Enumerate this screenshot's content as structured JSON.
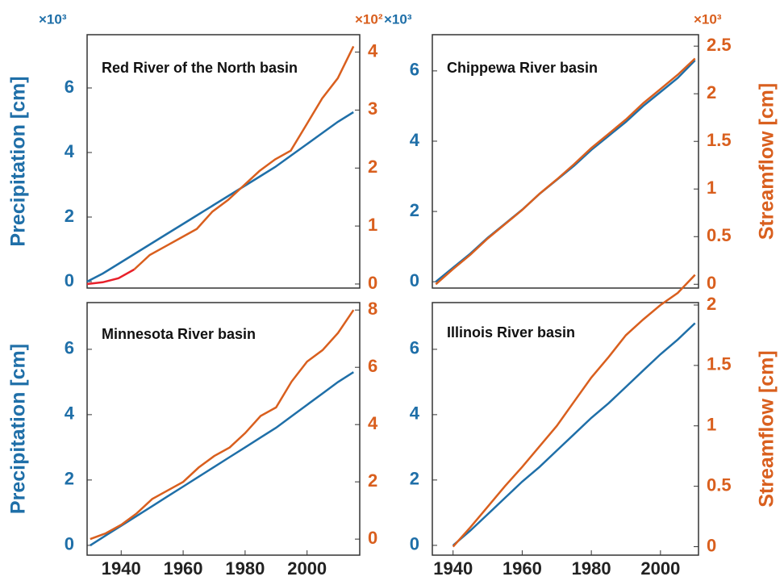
{
  "chart_data": [
    {
      "type": "line",
      "title": "Red River of the North basin",
      "ylabel": "Precipitation [cm]",
      "y_multiplier": "×10³",
      "y2_multiplier": "×10²",
      "x": [
        1930,
        1935,
        1940,
        1945,
        1950,
        1955,
        1960,
        1965,
        1970,
        1975,
        1980,
        1985,
        1990,
        1995,
        2000,
        2005,
        2010,
        2015
      ],
      "xlim": [
        1930,
        2017
      ],
      "ylim": [
        -0.2,
        7.65
      ],
      "yticks": [
        0,
        2,
        4,
        6
      ],
      "y2lim": [
        -0.07,
        4.3
      ],
      "y2ticks": [
        0,
        1,
        2,
        3,
        4
      ],
      "series": [
        {
          "color": "#1f6fa8",
          "values": [
            0,
            0.25,
            0.55,
            0.85,
            1.15,
            1.45,
            1.75,
            2.05,
            2.35,
            2.65,
            2.95,
            3.25,
            3.55,
            3.9,
            4.25,
            4.6,
            4.95,
            5.25
          ]
        },
        {
          "color": "#d95f1e",
          "axis": "y2",
          "values": [
            null,
            null,
            null,
            0.25,
            0.5,
            0.65,
            0.8,
            0.95,
            1.25,
            1.45,
            1.7,
            1.95,
            2.15,
            2.3,
            2.75,
            3.2,
            3.55,
            4.1
          ]
        },
        {
          "color": "#e8202a",
          "axis": "y2",
          "values": [
            0,
            0.03,
            0.1,
            0.25,
            null,
            null,
            null,
            null,
            null,
            null,
            null,
            null,
            null,
            null,
            null,
            null,
            null,
            null
          ]
        }
      ]
    },
    {
      "type": "line",
      "title": "Chippewa River basin",
      "y2label": "Streamflow [cm]",
      "y_multiplier": "×10³",
      "y2_multiplier": "×10³",
      "x": [
        1935,
        1940,
        1945,
        1950,
        1955,
        1960,
        1965,
        1970,
        1975,
        1980,
        1985,
        1990,
        1995,
        2000,
        2005,
        2010
      ],
      "xlim": [
        1934,
        2011
      ],
      "ylim": [
        -0.18,
        7.03
      ],
      "yticks": [
        0,
        2,
        4,
        6
      ],
      "y2lim": [
        -0.04,
        2.62
      ],
      "y2ticks": [
        0,
        0.5,
        1,
        1.5,
        2,
        2.5
      ],
      "series": [
        {
          "color": "#1f6fa8",
          "values": [
            0,
            0.4,
            0.8,
            1.25,
            1.65,
            2.05,
            2.5,
            2.9,
            3.3,
            3.75,
            4.15,
            4.55,
            5.0,
            5.4,
            5.8,
            6.3
          ]
        },
        {
          "color": "#d95f1e",
          "axis": "y2",
          "values": [
            0,
            0.16,
            0.31,
            0.48,
            0.63,
            0.78,
            0.95,
            1.1,
            1.26,
            1.43,
            1.58,
            1.73,
            1.9,
            2.05,
            2.2,
            2.37
          ]
        }
      ]
    },
    {
      "type": "line",
      "title": "Minnesota River basin",
      "ylabel": "Precipitation [cm]",
      "x": [
        1930,
        1935,
        1940,
        1945,
        1950,
        1955,
        1960,
        1965,
        1970,
        1975,
        1980,
        1985,
        1990,
        1995,
        2000,
        2005,
        2010,
        2015
      ],
      "xlim": [
        1929,
        2017
      ],
      "xticks": [
        1940,
        1960,
        1980,
        2000
      ],
      "ylim": [
        -0.3,
        7.43
      ],
      "yticks": [
        0,
        2,
        4,
        6
      ],
      "y2lim": [
        -0.56,
        8.26
      ],
      "y2ticks": [
        0,
        2,
        4,
        6,
        8
      ],
      "series": [
        {
          "color": "#1f6fa8",
          "values": [
            0,
            0.3,
            0.6,
            0.9,
            1.2,
            1.5,
            1.8,
            2.1,
            2.4,
            2.7,
            3.0,
            3.3,
            3.6,
            3.95,
            4.3,
            4.65,
            5.0,
            5.3
          ]
        },
        {
          "color": "#d95f1e",
          "axis": "y2",
          "values": [
            0,
            0.2,
            0.5,
            0.9,
            1.4,
            1.7,
            2.0,
            2.5,
            2.9,
            3.2,
            3.7,
            4.3,
            4.6,
            5.5,
            6.2,
            6.6,
            7.2,
            8.0
          ]
        }
      ]
    },
    {
      "type": "line",
      "title": "Illinois River basin",
      "y2label": "Streamflow [cm]",
      "x": [
        1940,
        1945,
        1950,
        1955,
        1960,
        1965,
        1970,
        1975,
        1980,
        1985,
        1990,
        1995,
        2000,
        2005,
        2010
      ],
      "xlim": [
        1934,
        2011
      ],
      "xticks": [
        1940,
        1960,
        1980,
        2000
      ],
      "ylim": [
        -0.3,
        7.43
      ],
      "yticks": [
        0,
        2,
        4,
        6
      ],
      "y2lim": [
        -0.07,
        2.02
      ],
      "y2ticks": [
        0,
        0.5,
        1,
        1.5,
        2
      ],
      "series": [
        {
          "color": "#1f6fa8",
          "values": [
            0,
            0.45,
            0.95,
            1.45,
            1.95,
            2.4,
            2.9,
            3.4,
            3.9,
            4.35,
            4.85,
            5.35,
            5.85,
            6.3,
            6.8
          ]
        },
        {
          "color": "#d95f1e",
          "axis": "y2",
          "values": [
            0,
            0.16,
            0.33,
            0.5,
            0.66,
            0.83,
            1.0,
            1.2,
            1.4,
            1.57,
            1.75,
            1.88,
            2.0,
            2.1,
            2.25
          ]
        }
      ]
    }
  ]
}
